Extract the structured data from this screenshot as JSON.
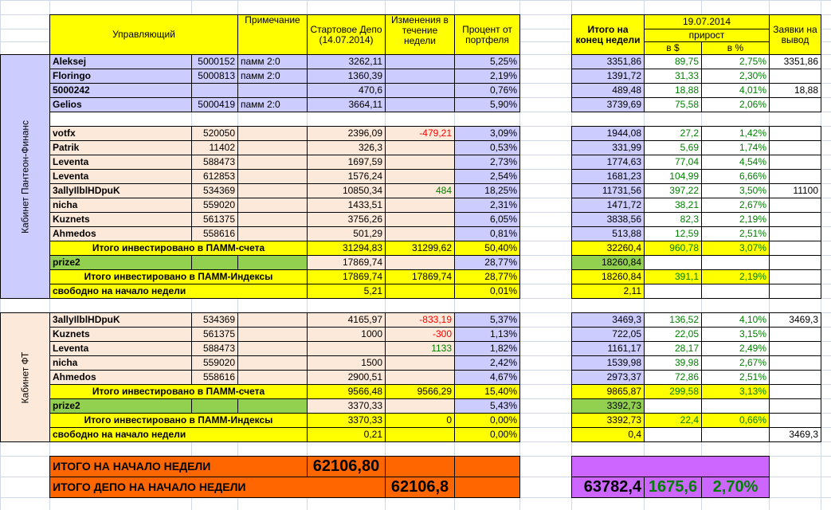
{
  "header": {
    "manager": "Управляющий",
    "note": "Примечание",
    "start_depo": "Стартовое Депо (14.07.2014)",
    "week_change": "Изменения в течение недели",
    "portfolio_share": "Процент от портфеля",
    "end_total": "Итого на конец недели",
    "date": "19.07.2014",
    "growth": "прирост",
    "growth_usd": "в $",
    "growth_pct": "в %",
    "withdrawals": "Заявки на вывод"
  },
  "sections": [
    {
      "label": "Кабинет Пантеон-Финанс",
      "rows": [
        [
          "Aleksej",
          "5000152",
          "памм 2:0",
          "3262,11",
          null,
          "5,25%",
          "3351,86",
          "89,75",
          "2,75%",
          "3351,86"
        ],
        [
          "Floringo",
          "5000813",
          "памм 2:0",
          "1360,39",
          null,
          "2,19%",
          "1391,72",
          "31,33",
          "2,30%",
          null
        ],
        [
          "5000242",
          null,
          null,
          "470,6",
          null,
          "0,76%",
          "489,48",
          "18,88",
          "4,01%",
          "18,88"
        ],
        [
          "Gelios",
          "5000419",
          "памм 2:0",
          "3664,11",
          null,
          "5,90%",
          "3739,69",
          "75,58",
          "2,06%",
          null
        ],
        [
          "votfx",
          "520050",
          null,
          "2396,09",
          "-479,21",
          "3,09%",
          "1944,08",
          "27,2",
          "1,42%",
          null
        ],
        [
          "Patrik",
          "11402",
          null,
          "326,3",
          null,
          "0,53%",
          "331,99",
          "5,69",
          "1,74%",
          null
        ],
        [
          "Leventa",
          "588473",
          null,
          "1697,59",
          null,
          "2,73%",
          "1774,63",
          "77,04",
          "4,54%",
          null
        ],
        [
          "Leventa",
          "612853",
          null,
          "1576,24",
          null,
          "2,54%",
          "1681,23",
          "104,99",
          "6,66%",
          null
        ],
        [
          "3allyIlblHDpuK",
          "534369",
          null,
          "10850,34",
          "484",
          "18,25%",
          "11731,56",
          "397,22",
          "3,50%",
          "11100"
        ],
        [
          "nicha",
          "559020",
          null,
          "1433,51",
          null,
          "2,31%",
          "1471,72",
          "38,21",
          "2,67%",
          null
        ],
        [
          "Kuznets",
          "561375",
          null,
          "3756,26",
          null,
          "6,05%",
          "3838,56",
          "82,3",
          "2,19%",
          null
        ],
        [
          "Ahmedos",
          "558616",
          null,
          "501,29",
          null,
          "0,81%",
          "513,88",
          "12,59",
          "2,51%",
          null
        ],
        [
          "Итого инвестировано в ПАММ-счета",
          null,
          null,
          "31294,83",
          "31299,62",
          "50,40%",
          "32260,4",
          "960,78",
          "3,07%",
          null
        ],
        [
          "prize2",
          null,
          null,
          "17869,74",
          null,
          "28,77%",
          "18260,84",
          null,
          null,
          null
        ],
        [
          "Итого инвестировано в ПАММ-Индексы",
          null,
          null,
          "17869,74",
          "17869,74",
          "28,77%",
          "18260,84",
          "391,1",
          "2,19%",
          null
        ],
        [
          "свободно на начало недели",
          null,
          null,
          "5,21",
          null,
          "0,01%",
          "2,11",
          null,
          null,
          null
        ]
      ]
    },
    {
      "label": "Кабинет ФТ",
      "rows": [
        [
          "3allyIlblHDpuK",
          "534369",
          null,
          "4165,97",
          "-833,19",
          "5,37%",
          "3469,3",
          "136,52",
          "4,10%",
          "3469,3"
        ],
        [
          "Kuznets",
          "561375",
          null,
          "1000",
          "-300",
          "1,13%",
          "722,05",
          "22,05",
          "3,15%",
          null
        ],
        [
          "Leventa",
          "588473",
          null,
          null,
          "1133",
          "1,82%",
          "1161,17",
          "28,17",
          "2,49%",
          null
        ],
        [
          "nicha",
          "559020",
          null,
          "1500",
          null,
          "2,42%",
          "1539,98",
          "39,98",
          "2,67%",
          null
        ],
        [
          "Ahmedos",
          "558616",
          null,
          "2900,51",
          null,
          "4,67%",
          "2973,37",
          "72,86",
          "2,51%",
          null
        ],
        [
          "Итого инвестировано в ПАММ-счета",
          null,
          null,
          "9566,48",
          "9566,29",
          "15,40%",
          "9865,87",
          "299,58",
          "3,13%",
          null
        ],
        [
          "prize2",
          null,
          null,
          "3370,33",
          null,
          "5,43%",
          "3392,73",
          null,
          null,
          null
        ],
        [
          "Итого инвестировано в ПАММ-Индексы",
          null,
          null,
          "3370,33",
          "0",
          "0,00%",
          "3392,73",
          "22,4",
          "0,66%",
          null
        ],
        [
          "свободно на начало недели",
          null,
          null,
          "0,21",
          null,
          "0,00%",
          "0,4",
          null,
          null,
          "3469,3"
        ]
      ]
    }
  ],
  "totals": {
    "start_week_label": "ИТОГО НА НАЧАЛО НЕДЕЛИ",
    "start_week_value": "62106,80",
    "depo_label": "ИТОГО ДЕПО НА НАЧАЛО НЕДЕЛИ",
    "depo_value": "62106,8",
    "end_total": "63782,4",
    "growth_usd": "1675,6",
    "growth_pct": "2,70%"
  }
}
